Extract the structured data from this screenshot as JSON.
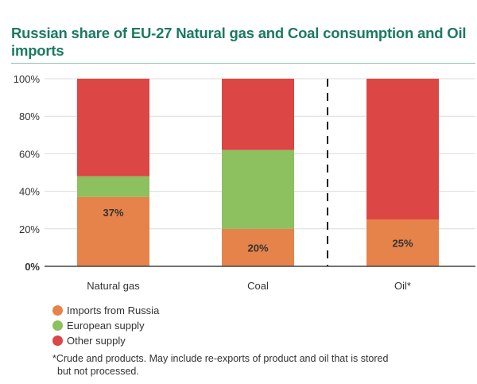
{
  "chart_data": {
    "type": "bar",
    "stacked": true,
    "title": "Russian share of EU-27 Natural gas and Coal consumption and Oil imports",
    "categories": [
      "Natural gas",
      "Coal",
      "Oil*"
    ],
    "series": [
      {
        "name": "Imports from Russia",
        "color": "#e5834a",
        "values": [
          37,
          20,
          25
        ]
      },
      {
        "name": "European supply",
        "color": "#8dc05f",
        "values": [
          11,
          42,
          0
        ]
      },
      {
        "name": "Other supply",
        "color": "#dc4644",
        "values": [
          52,
          38,
          75
        ]
      }
    ],
    "data_labels": [
      "37%",
      "20%",
      "25%"
    ],
    "yticks": [
      "0%",
      "20%",
      "40%",
      "60%",
      "80%",
      "100%"
    ],
    "ylim": [
      0,
      100
    ],
    "grid": true,
    "separator_before_category": "Oil*",
    "legend_position": "bottom-left",
    "footnote_line1": "*Crude and products. May include re-exports of product and oil that is stored",
    "footnote_line2": "but not processed."
  }
}
